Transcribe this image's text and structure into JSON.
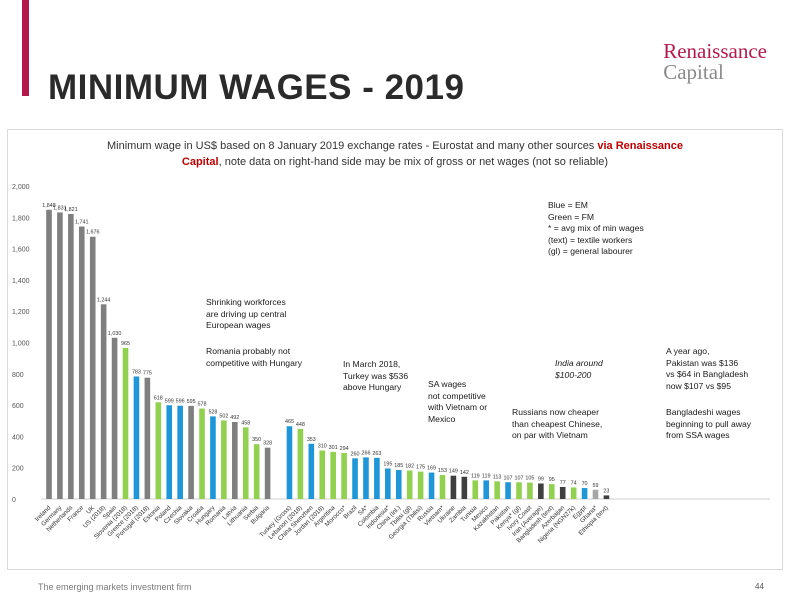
{
  "header": {
    "title": "MINIMUM WAGES - 2019",
    "brand_line1": "Renaissance",
    "brand_line2": "Capital",
    "accent_color": "#b5194c"
  },
  "footer": {
    "tagline": "The emerging markets investment firm",
    "page": "44"
  },
  "chart_title": {
    "part1": "Minimum wage in US$ based on 8 January 2019 exchange rates - Eurostat and many other sources ",
    "highlight1": "via Renaissance",
    "highlight2": "Capital",
    "part2": ", note data on right-hand side may be mix of gross or net wages (not so reliable)"
  },
  "annotations": {
    "legend": "Blue = EM\nGreen = FM\n* = avg mix of min wages\n(text) = textile workers\n(gl) = general labourer",
    "shrinking": "Shrinking workforces\nare driving up central\nEuropean wages",
    "romania": "Romania probably not\ncompetitive with Hungary",
    "march": "In March 2018,\nTurkey was $536\nabove Hungary",
    "sa": "SA wages\nnot competitive\nwith Vietnam or\nMexico",
    "russians": "Russians now cheaper\nthan cheapest Chinese,\non par with Vietnam",
    "india": "India around\n$100-200",
    "year_ago": "A year ago,\nPakistan was $136\nvs $64 in Bangladesh\nnow $107 vs $95",
    "bangladeshi": "Bangladeshi wages\nbeginning to pull away\nfrom SSA wages"
  },
  "colors": {
    "grey": "#7f7f7f",
    "em_blue": "#1e96d7",
    "fm_green": "#92d050",
    "dark": "#3f3f3f",
    "light_grey": "#a6a6a6"
  },
  "chart_data": {
    "type": "bar",
    "title": "Minimum wage in US$ based on 8 January 2019 exchange rates - Eurostat and many other sources via Renaissance Capital, note data on right-hand side may be mix of gross or net wages (not so reliable)",
    "ylim": [
      0,
      2000
    ],
    "yticks": [
      "0",
      "200",
      "400",
      "600",
      "800",
      "1,000",
      "1,200",
      "1,400",
      "1,600",
      "1,800",
      "2,000"
    ],
    "grid": false,
    "bars": [
      {
        "label": "Ireland",
        "value": 1848,
        "vlabel": "1,848",
        "color": "grey"
      },
      {
        "label": "Germany",
        "value": 1831,
        "vlabel": "1,831",
        "color": "grey"
      },
      {
        "label": "Netherlands",
        "value": 1821,
        "vlabel": "1,821",
        "color": "grey"
      },
      {
        "label": "France",
        "value": 1741,
        "vlabel": "1,741",
        "color": "grey"
      },
      {
        "label": "UK",
        "value": 1676,
        "vlabel": "1,676",
        "color": "grey"
      },
      {
        "label": "US (2018)",
        "value": 1244,
        "vlabel": "1,244",
        "color": "grey"
      },
      {
        "label": "Spain",
        "value": 1030,
        "vlabel": "1,030",
        "color": "grey"
      },
      {
        "label": "Slovenia (2018)",
        "value": 965,
        "vlabel": "965",
        "color": "fm_green"
      },
      {
        "label": "Greece (2018)",
        "value": 783,
        "vlabel": "783",
        "color": "em_blue"
      },
      {
        "label": "Portugal (2018)",
        "value": 775,
        "vlabel": "775",
        "color": "grey"
      },
      {
        "label": "Estonia",
        "value": 618,
        "vlabel": "618",
        "color": "fm_green"
      },
      {
        "label": "Poland",
        "value": 599,
        "vlabel": "599",
        "color": "em_blue"
      },
      {
        "label": "Czechia",
        "value": 596,
        "vlabel": "596",
        "color": "em_blue"
      },
      {
        "label": "Slovakia",
        "value": 595,
        "vlabel": "595",
        "color": "grey"
      },
      {
        "label": "Croatia",
        "value": 578,
        "vlabel": "578",
        "color": "fm_green"
      },
      {
        "label": "Hungary",
        "value": 528,
        "vlabel": "528",
        "color": "em_blue"
      },
      {
        "label": "Romania",
        "value": 502,
        "vlabel": "502",
        "color": "fm_green"
      },
      {
        "label": "Latvia",
        "value": 492,
        "vlabel": "492",
        "color": "grey"
      },
      {
        "label": "Lithuania",
        "value": 458,
        "vlabel": "458",
        "color": "fm_green"
      },
      {
        "label": "Serbia",
        "value": 350,
        "vlabel": "350",
        "color": "fm_green"
      },
      {
        "label": "Bulgaria",
        "value": 328,
        "vlabel": "328",
        "color": "grey"
      },
      {
        "gap": true
      },
      {
        "label": "Turkey (Gross)",
        "value": 465,
        "vlabel": "465",
        "color": "em_blue"
      },
      {
        "label": "Lebanon (2018)",
        "value": 448,
        "vlabel": "448",
        "color": "fm_green"
      },
      {
        "label": "China Shenzhen",
        "value": 353,
        "vlabel": "353",
        "color": "em_blue"
      },
      {
        "label": "Jordan (2018)",
        "value": 310,
        "vlabel": "310",
        "color": "fm_green"
      },
      {
        "label": "Argentina",
        "value": 301,
        "vlabel": "301",
        "color": "fm_green"
      },
      {
        "label": "Morocco*",
        "value": 294,
        "vlabel": "294",
        "color": "fm_green"
      },
      {
        "label": "Brazil",
        "value": 260,
        "vlabel": "260",
        "color": "em_blue"
      },
      {
        "label": "SA*",
        "value": 266,
        "vlabel": "266",
        "color": "em_blue"
      },
      {
        "label": "Colombia",
        "value": 263,
        "vlabel": "263",
        "color": "em_blue"
      },
      {
        "label": "Indonesia*",
        "value": 195,
        "vlabel": "195",
        "color": "em_blue"
      },
      {
        "label": "China (Inl.)",
        "value": 185,
        "vlabel": "185",
        "color": "em_blue"
      },
      {
        "label": "Tbilisi (gl)",
        "value": 182,
        "vlabel": "182",
        "color": "fm_green"
      },
      {
        "label": "Georgia (Tbilisi)",
        "value": 175,
        "vlabel": "175",
        "color": "fm_green"
      },
      {
        "label": "Russia",
        "value": 169,
        "vlabel": "169",
        "color": "em_blue"
      },
      {
        "label": "Vietnam*",
        "value": 153,
        "vlabel": "153",
        "color": "fm_green"
      },
      {
        "label": "Ukraine",
        "value": 149,
        "vlabel": "149",
        "color": "dark"
      },
      {
        "label": "Zambia",
        "value": 142,
        "vlabel": "142",
        "color": "dark"
      },
      {
        "label": "Tunisia",
        "value": 119,
        "vlabel": "119",
        "color": "fm_green"
      },
      {
        "label": "Mexico",
        "value": 119,
        "vlabel": "119",
        "color": "em_blue"
      },
      {
        "label": "Kazakhstan",
        "value": 113,
        "vlabel": "113",
        "color": "fm_green"
      },
      {
        "label": "Pakistan",
        "value": 107,
        "vlabel": "107",
        "color": "em_blue"
      },
      {
        "label": "Kenya* (gl)",
        "value": 107,
        "vlabel": "107",
        "color": "fm_green"
      },
      {
        "label": "Ivory Coast",
        "value": 105,
        "vlabel": "105",
        "color": "fm_green"
      },
      {
        "label": "Iran (Average)",
        "value": 99,
        "vlabel": "99",
        "color": "dark"
      },
      {
        "label": "Bangladesh (text)",
        "value": 95,
        "vlabel": "95",
        "color": "fm_green"
      },
      {
        "label": "Azerbaijan",
        "value": 77,
        "vlabel": "77",
        "color": "dark"
      },
      {
        "label": "Nigeria (NGN27k)",
        "value": 74,
        "vlabel": "74",
        "color": "fm_green"
      },
      {
        "label": "Egypt",
        "value": 70,
        "vlabel": "70",
        "color": "em_blue"
      },
      {
        "label": "Ghana*",
        "value": 59,
        "vlabel": "59",
        "color": "light_grey"
      },
      {
        "label": "Ethiopia (text)",
        "value": 23,
        "vlabel": "23",
        "color": "dark"
      }
    ]
  }
}
